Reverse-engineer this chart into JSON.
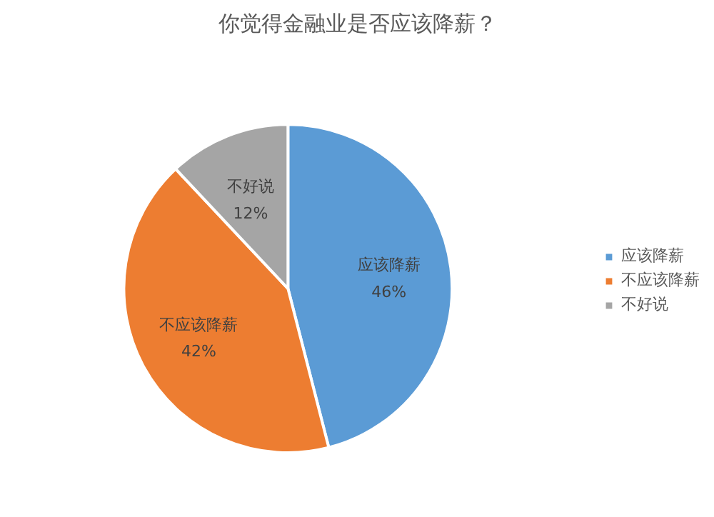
{
  "chart_data": {
    "type": "pie",
    "title": "你觉得金融业是否应该降薪？",
    "categories": [
      "应该降薪",
      "不应该降薪",
      "不好说"
    ],
    "values": [
      46,
      42,
      12
    ],
    "value_labels": [
      "46%",
      "42%",
      "12%"
    ],
    "colors": [
      "#5b9bd5",
      "#ed7d31",
      "#a5a5a5"
    ],
    "legend": "right"
  }
}
